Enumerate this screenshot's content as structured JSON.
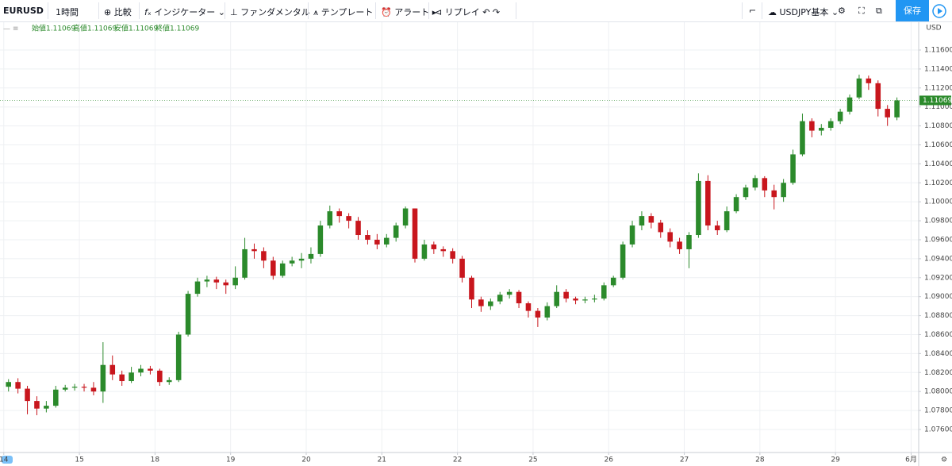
{
  "toolbar": {
    "symbol": "EURUSD",
    "interval": "1時間",
    "compare": "比較",
    "indicators": "インジケーター",
    "fundamental": "ファンダメンタル",
    "template": "テンプレート",
    "alert": "アラート",
    "replay": "リプレイ",
    "watchlist": "USDJPY基本",
    "save": "保存"
  },
  "chart_data": {
    "type": "candlestick",
    "currency_label": "USD",
    "ohlc_legend": [
      "始値1.11069",
      "高値1.11069",
      "安値1.11069",
      "終値1.11069"
    ],
    "last_price": 1.11069,
    "up_color": "#2b8a2b",
    "down_color": "#c8161d",
    "grid": true,
    "xlim": [
      -0.05,
      12.1
    ],
    "ylim": [
      1.07357,
      1.11893
    ],
    "xticks": [
      {
        "value": 0,
        "label": "14"
      },
      {
        "value": 1,
        "label": "15"
      },
      {
        "value": 2,
        "label": "18"
      },
      {
        "value": 3,
        "label": "19"
      },
      {
        "value": 4,
        "label": "20"
      },
      {
        "value": 5,
        "label": "21"
      },
      {
        "value": 6,
        "label": "22"
      },
      {
        "value": 7,
        "label": "25"
      },
      {
        "value": 8,
        "label": "26"
      },
      {
        "value": 9,
        "label": "27"
      },
      {
        "value": 10,
        "label": "28"
      },
      {
        "value": 11,
        "label": "29"
      },
      {
        "value": 12,
        "label": "6月"
      }
    ],
    "yticks": [
      {
        "value": 1.076,
        "label": "1.07600"
      },
      {
        "value": 1.078,
        "label": "1.07800"
      },
      {
        "value": 1.08,
        "label": "1.08000"
      },
      {
        "value": 1.082,
        "label": "1.08200"
      },
      {
        "value": 1.084,
        "label": "1.08400"
      },
      {
        "value": 1.086,
        "label": "1.08600"
      },
      {
        "value": 1.088,
        "label": "1.08800"
      },
      {
        "value": 1.09,
        "label": "1.09000"
      },
      {
        "value": 1.092,
        "label": "1.09200"
      },
      {
        "value": 1.094,
        "label": "1.09400"
      },
      {
        "value": 1.096,
        "label": "1.09600"
      },
      {
        "value": 1.098,
        "label": "1.09800"
      },
      {
        "value": 1.1,
        "label": "1.10000"
      },
      {
        "value": 1.102,
        "label": "1.10200"
      },
      {
        "value": 1.104,
        "label": "1.10400"
      },
      {
        "value": 1.106,
        "label": "1.10600"
      },
      {
        "value": 1.108,
        "label": "1.10800"
      },
      {
        "value": 1.11,
        "label": "1.11000"
      },
      {
        "value": 1.112,
        "label": "1.11200"
      },
      {
        "value": 1.114,
        "label": "1.11400"
      },
      {
        "value": 1.116,
        "label": "1.11600"
      }
    ],
    "x": [
      0.0625,
      0.1875,
      0.3125,
      0.4375,
      0.5625,
      0.6875,
      0.8125,
      0.9375,
      1.0625,
      1.1875,
      1.3125,
      1.4375,
      1.5625,
      1.6875,
      1.8125,
      1.9375,
      2.0625,
      2.1875,
      2.3125,
      2.4375,
      2.5625,
      2.6875,
      2.8125,
      2.9375,
      3.0625,
      3.1875,
      3.3125,
      3.4375,
      3.5625,
      3.6875,
      3.8125,
      3.9375,
      4.0625,
      4.1875,
      4.3125,
      4.4375,
      4.5625,
      4.6875,
      4.8125,
      4.9375,
      5.0625,
      5.1875,
      5.3125,
      5.4375,
      5.5625,
      5.6875,
      5.8125,
      5.9375,
      6.0625,
      6.1875,
      6.3125,
      6.4375,
      6.5625,
      6.6875,
      6.8125,
      6.9375,
      7.0625,
      7.1875,
      7.3125,
      7.4375,
      7.5625,
      7.6875,
      7.8125,
      7.9375,
      8.0625,
      8.1875,
      8.3125,
      8.4375,
      8.5625,
      8.6875,
      8.8125,
      8.9375,
      9.0625,
      9.1875,
      9.3125,
      9.4375,
      9.5625,
      9.6875,
      9.8125,
      9.9375,
      10.0625,
      10.1875,
      10.3125,
      10.4375,
      10.5625,
      10.6875,
      10.8125,
      10.9375,
      11.0625,
      11.1875,
      11.3125,
      11.4375,
      11.5625,
      11.6875,
      11.8125
    ],
    "open": [
      1.0805,
      1.081,
      1.0803,
      1.079,
      1.0782,
      1.0785,
      1.0802,
      1.0804,
      1.0805,
      1.0804,
      1.08,
      1.0828,
      1.0818,
      1.0811,
      1.082,
      1.0824,
      1.0822,
      1.081,
      1.0812,
      1.086,
      1.0903,
      1.0916,
      1.0918,
      1.0915,
      1.0912,
      1.092,
      1.095,
      1.0948,
      1.0938,
      1.0922,
      1.0935,
      1.0938,
      1.094,
      1.0945,
      1.0975,
      1.099,
      1.0985,
      1.098,
      1.0965,
      1.096,
      1.0955,
      1.0962,
      1.0975,
      1.0993,
      1.094,
      1.0955,
      1.095,
      1.0948,
      1.094,
      1.092,
      1.0897,
      1.089,
      1.0895,
      1.0902,
      1.0905,
      1.0893,
      1.0885,
      1.0878,
      1.089,
      1.0905,
      1.0898,
      1.0896,
      1.0897,
      1.0898,
      1.0912,
      1.092,
      1.0955,
      1.0975,
      1.0985,
      1.0978,
      1.0968,
      1.0958,
      1.095,
      1.0965,
      1.1022,
      1.0975,
      1.097,
      1.099,
      1.1005,
      1.1015,
      1.1025,
      1.1012,
      1.1005,
      1.102,
      1.105,
      1.1085,
      1.1075,
      1.1078,
      1.1085,
      1.1095,
      1.111,
      1.113,
      1.1125,
      1.1098,
      1.1089
    ],
    "high": [
      1.0813,
      1.0814,
      1.0806,
      1.0795,
      1.079,
      1.0806,
      1.0807,
      1.0808,
      1.0808,
      1.081,
      1.0852,
      1.0838,
      1.0822,
      1.0826,
      1.0828,
      1.0827,
      1.0824,
      1.0815,
      1.0863,
      1.0906,
      1.092,
      1.0922,
      1.0921,
      1.0918,
      1.0932,
      1.0962,
      1.0956,
      1.0952,
      1.0942,
      1.0938,
      1.0942,
      1.0946,
      1.0952,
      1.098,
      1.0996,
      1.0993,
      1.0988,
      1.0984,
      1.097,
      1.0966,
      1.0966,
      1.0978,
      1.0995,
      1.0993,
      1.096,
      1.0958,
      1.0953,
      1.0951,
      1.0943,
      1.0922,
      1.09,
      1.0898,
      1.0905,
      1.0908,
      1.0907,
      1.0895,
      1.0888,
      1.0894,
      1.0912,
      1.0908,
      1.09,
      1.09,
      1.0902,
      1.0915,
      1.0922,
      1.0958,
      1.098,
      1.099,
      1.0988,
      1.0981,
      1.0972,
      1.0962,
      1.0968,
      1.103,
      1.1028,
      1.098,
      1.0995,
      1.1008,
      1.1018,
      1.1028,
      1.1027,
      1.1018,
      1.1024,
      1.1055,
      1.1093,
      1.1088,
      1.1082,
      1.1088,
      1.1098,
      1.1113,
      1.1134,
      1.1133,
      1.1128,
      1.1102,
      1.111
    ],
    "low": [
      1.08,
      1.0798,
      1.0776,
      1.0775,
      1.0778,
      1.0783,
      1.08,
      1.0801,
      1.08,
      1.0796,
      1.0788,
      1.0812,
      1.0806,
      1.0809,
      1.0816,
      1.0818,
      1.0806,
      1.0807,
      1.081,
      1.0858,
      1.09,
      1.091,
      1.0908,
      1.0903,
      1.0908,
      1.0918,
      1.094,
      1.093,
      1.0918,
      1.092,
      1.0932,
      1.093,
      1.0935,
      1.0942,
      1.0972,
      1.0978,
      1.0972,
      1.096,
      1.0955,
      1.095,
      1.0952,
      1.0958,
      1.0972,
      1.0936,
      1.0938,
      1.0945,
      1.0942,
      1.0935,
      1.0915,
      1.0888,
      1.0884,
      1.0886,
      1.0892,
      1.0898,
      1.0888,
      1.0878,
      1.0868,
      1.0875,
      1.0888,
      1.0894,
      1.0892,
      1.0893,
      1.0894,
      1.0896,
      1.091,
      1.0918,
      1.0952,
      1.097,
      1.0972,
      1.0962,
      1.0952,
      1.0945,
      1.093,
      1.0962,
      1.097,
      1.0965,
      1.0968,
      1.0988,
      1.1002,
      1.1012,
      1.1005,
      1.0992,
      1.1,
      1.1018,
      1.1048,
      1.1068,
      1.107,
      1.1075,
      1.1082,
      1.1092,
      1.1108,
      1.1118,
      1.109,
      1.108,
      1.1086
    ],
    "close": [
      1.081,
      1.0803,
      1.079,
      1.0782,
      1.0785,
      1.0802,
      1.0804,
      1.0805,
      1.0804,
      1.08,
      1.0828,
      1.0818,
      1.0811,
      1.082,
      1.0824,
      1.0822,
      1.081,
      1.0812,
      1.086,
      1.0903,
      1.0916,
      1.0918,
      1.0915,
      1.0912,
      1.092,
      1.095,
      1.0948,
      1.0938,
      1.0922,
      1.0935,
      1.0938,
      1.094,
      1.0945,
      1.0975,
      1.099,
      1.0985,
      1.098,
      1.0965,
      1.096,
      1.0955,
      1.0962,
      1.0975,
      1.0993,
      1.094,
      1.0955,
      1.095,
      1.0948,
      1.094,
      1.092,
      1.0897,
      1.089,
      1.0895,
      1.0902,
      1.0905,
      1.0893,
      1.0885,
      1.0878,
      1.089,
      1.0905,
      1.0898,
      1.0896,
      1.0897,
      1.0898,
      1.0912,
      1.092,
      1.0955,
      1.0975,
      1.0985,
      1.0978,
      1.0968,
      1.0958,
      1.095,
      1.0965,
      1.1022,
      1.0975,
      1.097,
      1.099,
      1.1005,
      1.1015,
      1.1025,
      1.1012,
      1.1005,
      1.102,
      1.105,
      1.1085,
      1.1075,
      1.1078,
      1.1085,
      1.1095,
      1.111,
      1.113,
      1.1125,
      1.1098,
      1.1089,
      1.11069
    ]
  }
}
